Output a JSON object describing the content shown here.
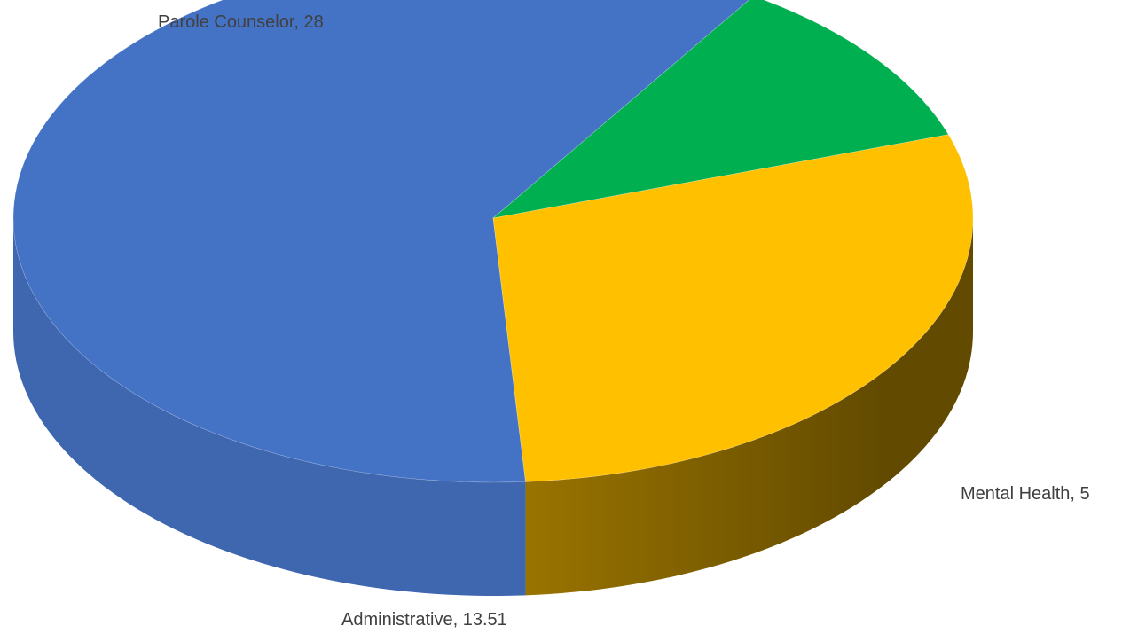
{
  "chart_data": {
    "type": "pie",
    "style": "3d",
    "categories": [
      "Parole Counselor",
      "Mental Health",
      "Administrative"
    ],
    "values": [
      28,
      5,
      13.51
    ],
    "labels": [
      "Parole Counselor, 28",
      "Mental Health, 5",
      "Administrative, 13.51"
    ],
    "colors": [
      "#4472C4",
      "#00B050",
      "#FFC000"
    ],
    "legend": "none"
  }
}
